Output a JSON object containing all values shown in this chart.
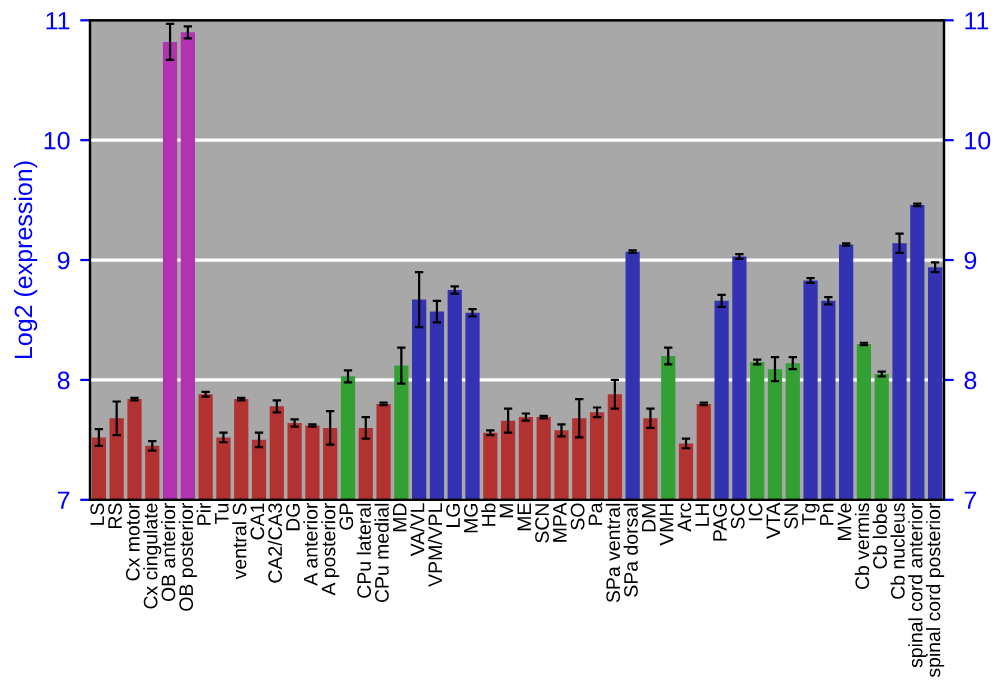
{
  "chart_data": {
    "type": "bar",
    "ylabel": "Log2 (expression)",
    "categories": [
      "LS",
      "RS",
      "Cx motor",
      "Cx cingulate",
      "OB anterior",
      "OB posterior",
      "Pir",
      "Tu",
      "ventral S",
      "CA1",
      "CA2/CA3",
      "DG",
      "A anterior",
      "A posterior",
      "GP",
      "CPu lateral",
      "CPu medial",
      "MD",
      "VA/VL",
      "VPM/VPL",
      "LG",
      "MG",
      "Hb",
      "M",
      "ME",
      "SCN",
      "MPA",
      "SO",
      "Pa",
      "SPa ventral",
      "SPa dorsal",
      "DM",
      "VMH",
      "Arc",
      "LH",
      "PAG",
      "SC",
      "IC",
      "VTA",
      "SN",
      "Tg",
      "Pn",
      "MVe",
      "Cb vermis",
      "Cb lobe",
      "Cb nucleus",
      "spinal cord anterior",
      "spinal cord posterior"
    ],
    "values": [
      7.52,
      7.68,
      7.84,
      7.45,
      10.82,
      10.9,
      7.88,
      7.52,
      7.84,
      7.5,
      7.78,
      7.64,
      7.62,
      7.6,
      8.03,
      7.6,
      7.8,
      8.12,
      8.67,
      8.57,
      8.75,
      8.56,
      7.56,
      7.66,
      7.69,
      7.69,
      7.58,
      7.68,
      7.73,
      7.88,
      9.07,
      7.68,
      8.2,
      7.47,
      7.8,
      8.66,
      9.03,
      8.15,
      8.09,
      8.14,
      8.83,
      8.66,
      9.13,
      8.3,
      8.05,
      9.14,
      9.46,
      8.94
    ],
    "errors": [
      0.07,
      0.14,
      0.01,
      0.04,
      0.15,
      0.05,
      0.02,
      0.04,
      0.01,
      0.06,
      0.05,
      0.03,
      0.01,
      0.14,
      0.05,
      0.09,
      0.01,
      0.15,
      0.23,
      0.09,
      0.03,
      0.03,
      0.02,
      0.1,
      0.03,
      0.01,
      0.05,
      0.16,
      0.04,
      0.12,
      0.01,
      0.08,
      0.07,
      0.04,
      0.01,
      0.05,
      0.02,
      0.02,
      0.1,
      0.05,
      0.02,
      0.03,
      0.01,
      0.01,
      0.02,
      0.08,
      0.01,
      0.04
    ],
    "colors": [
      "#b23232",
      "#b23232",
      "#b23232",
      "#b23232",
      "#b232b2",
      "#b232b2",
      "#b23232",
      "#b23232",
      "#b23232",
      "#b23232",
      "#b23232",
      "#b23232",
      "#b23232",
      "#b23232",
      "#32a032",
      "#b23232",
      "#b23232",
      "#32a032",
      "#3232b2",
      "#3232b2",
      "#3232b2",
      "#3232b2",
      "#b23232",
      "#b23232",
      "#b23232",
      "#b23232",
      "#b23232",
      "#b23232",
      "#b23232",
      "#b23232",
      "#3232b2",
      "#b23232",
      "#32a032",
      "#b23232",
      "#b23232",
      "#3232b2",
      "#3232b2",
      "#32a032",
      "#32a032",
      "#32a032",
      "#3232b2",
      "#3232b2",
      "#3232b2",
      "#32a032",
      "#32a032",
      "#3232b2",
      "#3232b2",
      "#3232b2"
    ],
    "ylim": [
      7,
      11
    ],
    "yticks": [
      7,
      8,
      9,
      10,
      11
    ],
    "y2lim": [
      7,
      11
    ],
    "y2ticks": [
      7,
      8,
      9,
      10,
      11
    ],
    "grid": "y"
  }
}
